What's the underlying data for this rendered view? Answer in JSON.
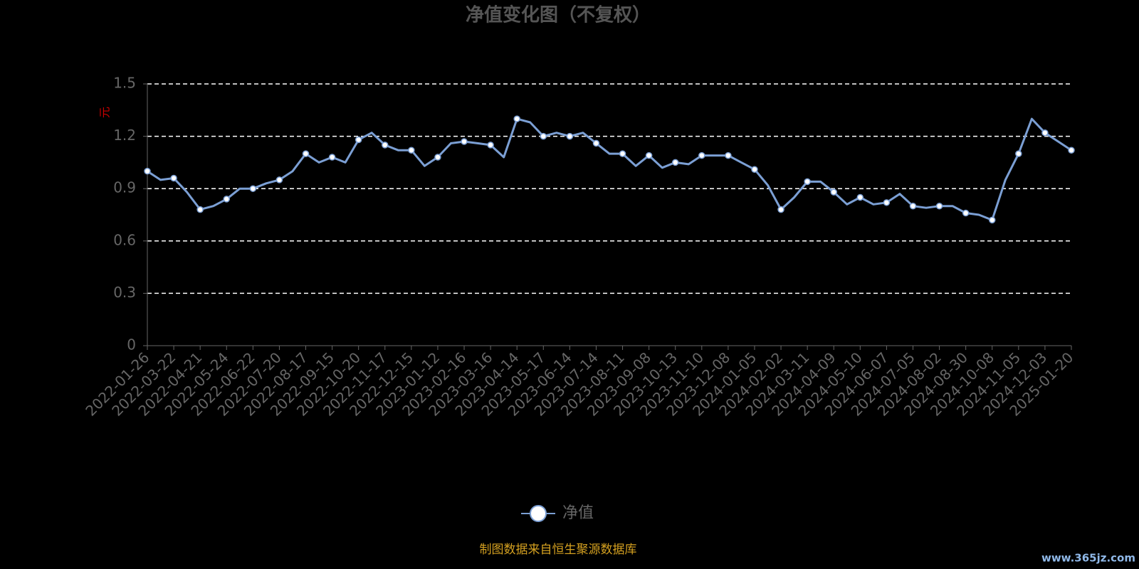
{
  "chart_data": {
    "type": "line",
    "title": "净值变化图（不复权）",
    "y_axis_label": "元",
    "footer": "制图数据来自恒生聚源数据库",
    "watermark": "www.365jz.com",
    "categories": [
      "2022-01-26",
      null,
      "2022-03-22",
      null,
      "2022-04-21",
      null,
      "2022-05-24",
      null,
      "2022-06-22",
      null,
      "2022-07-20",
      null,
      "2022-08-17",
      null,
      "2022-09-15",
      null,
      "2022-10-20",
      null,
      "2022-11-17",
      null,
      "2022-12-15",
      null,
      "2023-01-12",
      null,
      "2023-02-16",
      null,
      "2023-03-16",
      null,
      "2023-04-14",
      null,
      "2023-05-17",
      null,
      "2023-06-14",
      null,
      "2023-07-14",
      null,
      "2023-08-11",
      null,
      "2023-09-08",
      null,
      "2023-10-13",
      null,
      "2023-11-10",
      null,
      "2023-12-08",
      null,
      "2024-01-05",
      null,
      "2024-02-02",
      null,
      "2024-03-11",
      null,
      "2024-04-09",
      null,
      "2024-05-10",
      null,
      "2024-06-07",
      null,
      "2024-07-05",
      null,
      "2024-08-02",
      null,
      "2024-08-30",
      null,
      "2024-10-08",
      null,
      "2024-11-05",
      null,
      "2024-12-03",
      null,
      "2025-01-20"
    ],
    "series": [
      {
        "name": "净值",
        "color": "#7b9fd4",
        "values": [
          1.0,
          0.95,
          0.96,
          0.88,
          0.78,
          0.8,
          0.84,
          0.9,
          0.9,
          0.93,
          0.95,
          1.0,
          1.1,
          1.05,
          1.08,
          1.05,
          1.18,
          1.22,
          1.15,
          1.12,
          1.12,
          1.03,
          1.08,
          1.16,
          1.17,
          1.16,
          1.15,
          1.08,
          1.3,
          1.28,
          1.2,
          1.22,
          1.2,
          1.22,
          1.16,
          1.1,
          1.1,
          1.03,
          1.09,
          1.02,
          1.05,
          1.04,
          1.09,
          1.09,
          1.09,
          1.05,
          1.01,
          0.92,
          0.78,
          0.85,
          0.94,
          0.94,
          0.88,
          0.81,
          0.85,
          0.81,
          0.82,
          0.87,
          0.8,
          0.79,
          0.8,
          0.8,
          0.76,
          0.75,
          0.72,
          0.95,
          1.1,
          1.3,
          1.22,
          1.17,
          1.12
        ]
      }
    ],
    "ylim": [
      0,
      1.5
    ],
    "yticks": [
      0,
      0.3,
      0.6,
      0.9,
      1.2,
      1.5
    ],
    "grid": true,
    "legend": "bottom"
  }
}
